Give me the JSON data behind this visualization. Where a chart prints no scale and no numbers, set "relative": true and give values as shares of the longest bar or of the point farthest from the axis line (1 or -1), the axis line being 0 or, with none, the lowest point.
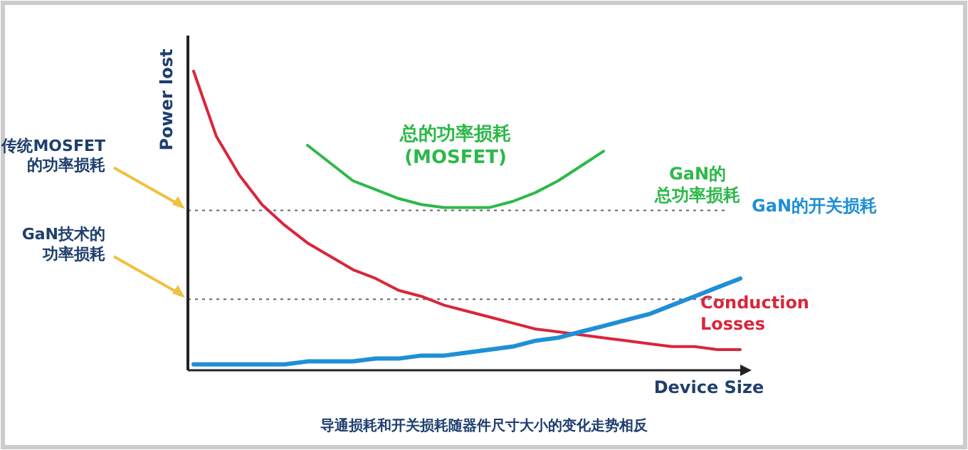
{
  "chart_data": {
    "type": "line",
    "relative": true,
    "xlabel": "Device Size",
    "ylabel": "Power lost",
    "categories": [
      null,
      null,
      null,
      null,
      null,
      null,
      null,
      null,
      null,
      null,
      null,
      null,
      null,
      null,
      null,
      null,
      null,
      null,
      null,
      null,
      null,
      null,
      null,
      null,
      null
    ],
    "series": [
      {
        "name": "总的功率损耗(MOSFET)",
        "color": "#2eb84a",
        "values": [
          null,
          null,
          null,
          null,
          null,
          0.75,
          0.69,
          0.63,
          0.6,
          0.57,
          0.55,
          0.54,
          0.54,
          0.54,
          0.56,
          0.59,
          0.63,
          0.68,
          0.73,
          null,
          null,
          null,
          null,
          null,
          null
        ]
      },
      {
        "name": "Conduction Losses",
        "color": "#d9263a",
        "values": [
          1.0,
          0.78,
          0.65,
          0.55,
          0.48,
          0.42,
          0.375,
          0.33,
          0.3,
          0.26,
          0.24,
          0.21,
          0.19,
          0.17,
          0.15,
          0.13,
          0.12,
          0.11,
          0.1,
          0.09,
          0.08,
          0.07,
          0.07,
          0.06,
          0.06
        ]
      },
      {
        "name": "GaN的开关损耗",
        "color": "#1f8fd6",
        "values": [
          0.01,
          0.01,
          0.01,
          0.01,
          0.01,
          0.02,
          0.02,
          0.02,
          0.03,
          0.03,
          0.04,
          0.04,
          0.05,
          0.06,
          0.07,
          0.09,
          0.1,
          0.12,
          0.14,
          0.16,
          0.18,
          0.21,
          0.24,
          0.27,
          0.3
        ]
      }
    ],
    "ref_lines": [
      {
        "axis": "y",
        "value": 0.53,
        "label": "传统MOSFET的功率损耗",
        "color": "#666666",
        "line_style": "dotted"
      },
      {
        "axis": "y",
        "value": 0.23,
        "label": "GaN技术的功率损耗",
        "color": "#666666",
        "line_style": "dotted"
      }
    ],
    "annotations": [
      "GaN的总功率损耗",
      "导通损耗和开关损耗随器件尺寸大小的变化走势相反"
    ]
  }
}
